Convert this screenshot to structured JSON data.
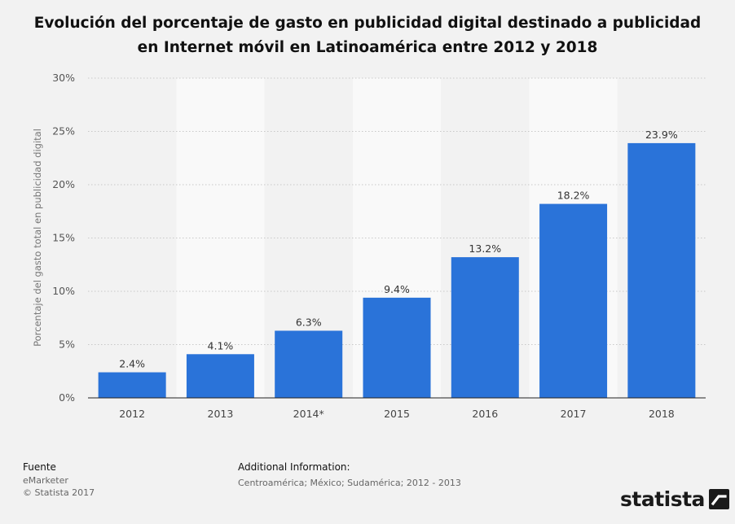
{
  "title": "Evolución del porcentaje de gasto en publicidad digital destinado a publicidad en Internet móvil en Latinoamérica entre 2012 y 2018",
  "chart_data": {
    "type": "bar",
    "categories": [
      "2012",
      "2013",
      "2014*",
      "2015",
      "2016",
      "2017",
      "2018"
    ],
    "values": [
      2.4,
      4.1,
      6.3,
      9.4,
      13.2,
      18.2,
      23.9
    ],
    "value_labels": [
      "2.4%",
      "4.1%",
      "6.3%",
      "9.4%",
      "13.2%",
      "18.2%",
      "23.9%"
    ],
    "ylabel": "Porcentaje del gasto total en publicidad digital",
    "ylim": [
      0,
      30
    ],
    "yticks": [
      0,
      5,
      10,
      15,
      20,
      25,
      30
    ],
    "ytick_labels": [
      "0%",
      "5%",
      "10%",
      "15%",
      "20%",
      "25%",
      "30%"
    ],
    "bar_color": "#2a73d9",
    "grid": true
  },
  "footer": {
    "source_heading": "Fuente",
    "source_name": "eMarketer",
    "copyright": "© Statista 2017",
    "info_heading": "Additional Information:",
    "info_text": "Centroamérica; México; Sudamérica; 2012 - 2013"
  },
  "logo": {
    "text": "statista",
    "icon": "statista-logo-icon"
  }
}
